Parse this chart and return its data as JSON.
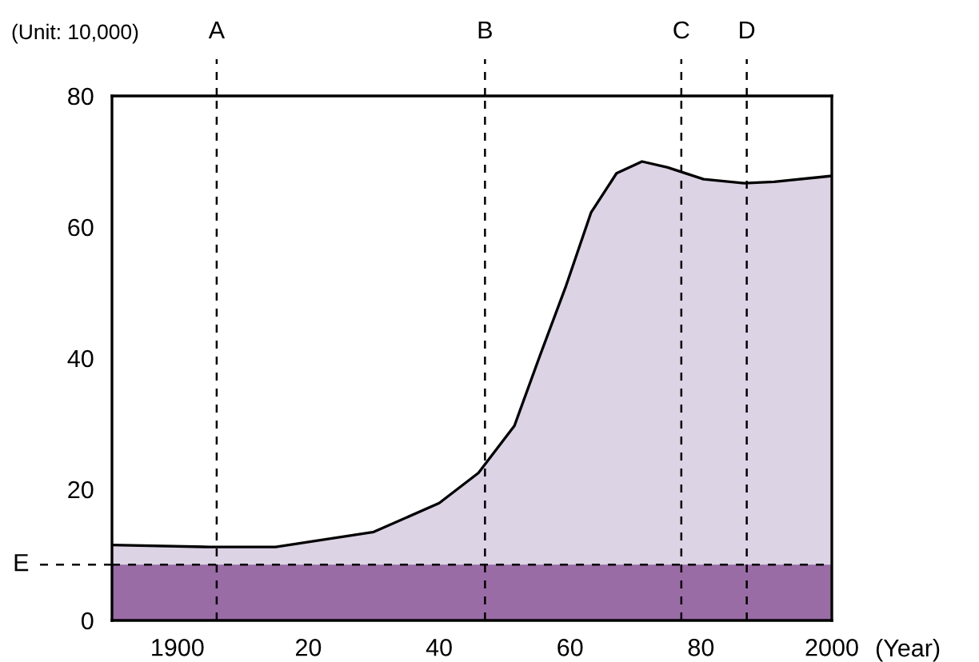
{
  "chart_data": {
    "type": "area",
    "ylabel": "(Unit: 10,000)",
    "xlabel": "(Year)",
    "series": [
      {
        "color": "#dcd3e5",
        "x": [
          1890,
          1905,
          1915,
          1930,
          1940,
          1946,
          1951.5,
          1955.4,
          1959.3,
          1963.2,
          1967.1,
          1971,
          1974.9,
          1980.4,
          1986.6,
          1991.2,
          2000
        ],
        "values": [
          11.5,
          11.2,
          11.2,
          13.5,
          17.9,
          22.5,
          29.7,
          40.4,
          50.8,
          62.2,
          68.2,
          70,
          69.1,
          67.3,
          66.7,
          66.9,
          67.8
        ]
      },
      {
        "color": "#9a6ca6",
        "x": [
          1890,
          2000
        ],
        "values": [
          8.5,
          8.5
        ]
      }
    ],
    "xlim": [
      1890,
      2000
    ],
    "xticks": [
      1900,
      {
        "value": 1920,
        "label": "20"
      },
      {
        "value": 1940,
        "label": "40"
      },
      {
        "value": 1960,
        "label": "60"
      },
      {
        "value": 1980,
        "label": "80"
      },
      2000
    ],
    "ylim": [
      0,
      80
    ],
    "yticks": [
      0,
      20,
      40,
      60,
      80
    ],
    "ref_lines": [
      {
        "axis": "x",
        "value": 1906,
        "label": "A",
        "line_style": "dashed"
      },
      {
        "axis": "x",
        "value": 1947,
        "label": "B",
        "line_style": "dashed"
      },
      {
        "axis": "x",
        "value": 1977,
        "label": "C",
        "line_style": "dashed"
      },
      {
        "axis": "x",
        "value": 1987,
        "label": "D",
        "line_style": "dashed"
      },
      {
        "axis": "y",
        "value": 8.5,
        "label": "E",
        "line_style": "dashed"
      }
    ],
    "grid": false
  }
}
